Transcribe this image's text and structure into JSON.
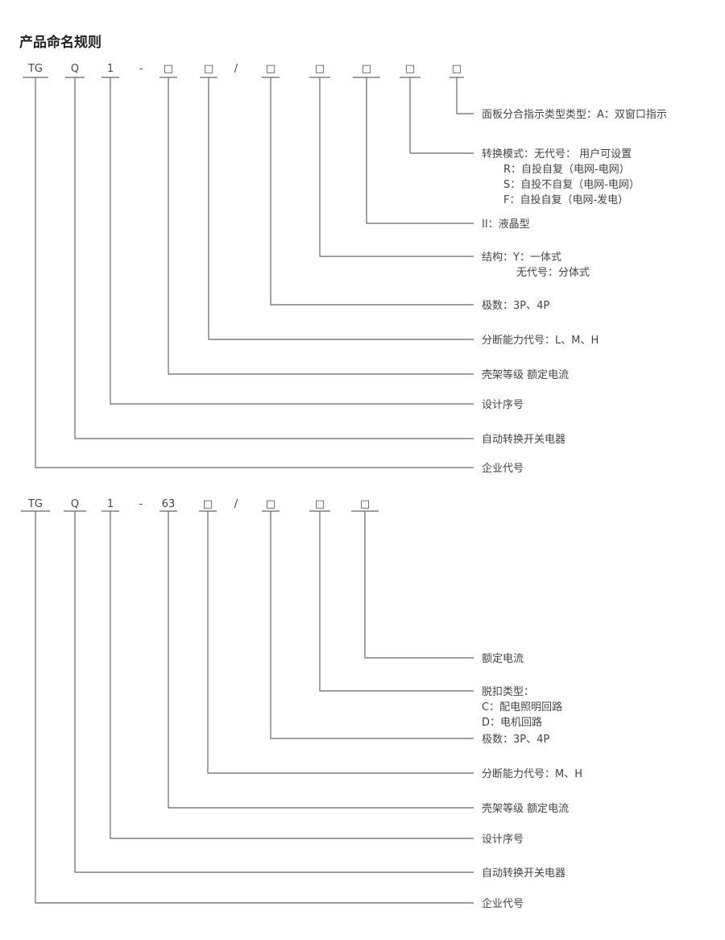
{
  "title": "产品命名规则",
  "colors": {
    "line": "#666666",
    "text": "#444444"
  },
  "diagrams": [
    {
      "codes": [
        "TG",
        "Q",
        "1",
        "-",
        "□",
        "□",
        "/",
        "□",
        "□",
        "□",
        "□",
        "□"
      ],
      "descriptions": [
        [
          "面板分合指示类型类型：A：双窗口指示"
        ],
        [
          "转换模式：无代号： 用户可设置",
          "R：自投自复（电网-电网）",
          "S：自投不自复（电网-电网）",
          "F：自投自复（电网-发电）"
        ],
        [
          "II：液晶型"
        ],
        [
          "结构：Y：一体式",
          "无代号：分体式"
        ],
        [
          "极数：3P、4P"
        ],
        [
          "分断能力代号：L、M、H"
        ],
        [
          "壳架等级 额定电流"
        ],
        [
          "设计序号"
        ],
        [
          "自动转换开关电器"
        ],
        [
          "企业代号"
        ]
      ]
    },
    {
      "codes": [
        "TG",
        "Q",
        "1",
        "-",
        "63",
        "□",
        "/",
        "□",
        "□",
        "□"
      ],
      "descriptions": [
        [
          "额定电流"
        ],
        [
          "脱扣类型：",
          "C：配电照明回路",
          "D：电机回路"
        ],
        [
          "极数：3P、4P"
        ],
        [
          "分断能力代号：M、H"
        ],
        [
          "壳架等级 额定电流"
        ],
        [
          "设计序号"
        ],
        [
          "自动转换开关电器"
        ],
        [
          "企业代号"
        ]
      ]
    }
  ]
}
